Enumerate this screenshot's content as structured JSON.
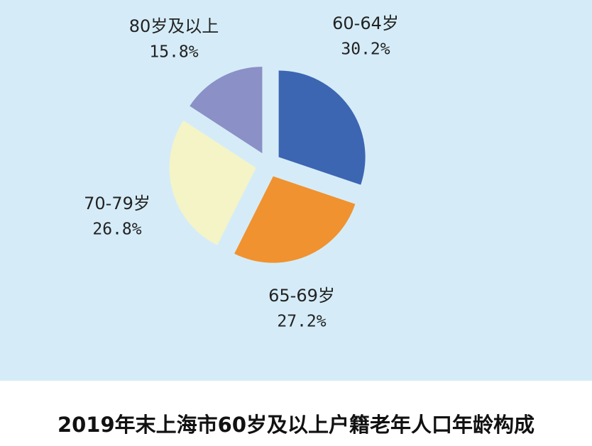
{
  "chart_data": {
    "type": "pie",
    "title": "2019年末上海市60岁及以上户籍老年人口年龄构成",
    "categories": [
      "60-64岁",
      "65-69岁",
      "70-79岁",
      "80岁及以上"
    ],
    "values": [
      30.2,
      27.2,
      26.8,
      15.8
    ],
    "value_labels": [
      "30.2%",
      "27.2%",
      "26.8%",
      "15.8%"
    ],
    "colors": [
      "#3c66b2",
      "#f0922f",
      "#f4f4c6",
      "#8b90c6"
    ]
  }
}
